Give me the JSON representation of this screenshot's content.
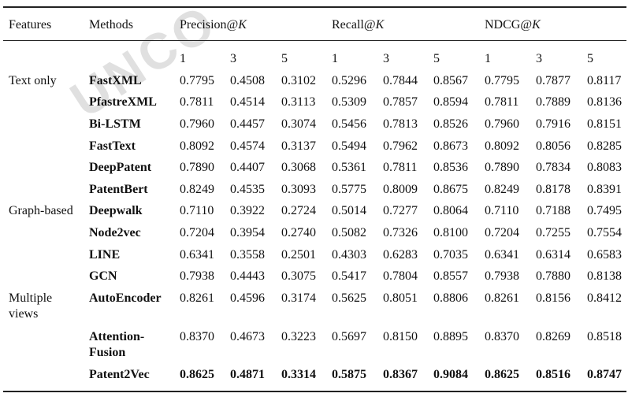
{
  "watermark": "UNCO",
  "table": {
    "headers": {
      "features": "Features",
      "methods": "Methods",
      "groups": [
        {
          "label": "Precision@",
          "var": "K"
        },
        {
          "label": "Recall@",
          "var": "K"
        },
        {
          "label": "NDCG@",
          "var": "K"
        }
      ]
    },
    "k_values": [
      "1",
      "3",
      "5",
      "1",
      "3",
      "5",
      "1",
      "3",
      "5"
    ],
    "rows": [
      {
        "group": "Text only",
        "method": "FastXML",
        "values": [
          "0.7795",
          "0.4508",
          "0.3102",
          "0.5296",
          "0.7844",
          "0.8567",
          "0.7795",
          "0.7877",
          "0.8117"
        ]
      },
      {
        "group": null,
        "method": "PfastreXML",
        "values": [
          "0.7811",
          "0.4514",
          "0.3113",
          "0.5309",
          "0.7857",
          "0.8594",
          "0.7811",
          "0.7889",
          "0.8136"
        ]
      },
      {
        "group": null,
        "method": "Bi-LSTM",
        "values": [
          "0.7960",
          "0.4457",
          "0.3074",
          "0.5456",
          "0.7813",
          "0.8526",
          "0.7960",
          "0.7916",
          "0.8151"
        ]
      },
      {
        "group": null,
        "method": "FastText",
        "values": [
          "0.8092",
          "0.4574",
          "0.3137",
          "0.5494",
          "0.7962",
          "0.8673",
          "0.8092",
          "0.8056",
          "0.8285"
        ]
      },
      {
        "group": null,
        "method": "DeepPatent",
        "values": [
          "0.7890",
          "0.4407",
          "0.3068",
          "0.5361",
          "0.7811",
          "0.8536",
          "0.7890",
          "0.7834",
          "0.8083"
        ]
      },
      {
        "group": null,
        "method": "PatentBert",
        "values": [
          "0.8249",
          "0.4535",
          "0.3093",
          "0.5775",
          "0.8009",
          "0.8675",
          "0.8249",
          "0.8178",
          "0.8391"
        ]
      },
      {
        "group": "Graph-based",
        "method": "Deepwalk",
        "values": [
          "0.7110",
          "0.3922",
          "0.2724",
          "0.5014",
          "0.7277",
          "0.8064",
          "0.7110",
          "0.7188",
          "0.7495"
        ]
      },
      {
        "group": null,
        "method": "Node2vec",
        "values": [
          "0.7204",
          "0.3954",
          "0.2740",
          "0.5082",
          "0.7326",
          "0.8100",
          "0.7204",
          "0.7255",
          "0.7554"
        ]
      },
      {
        "group": null,
        "method": "LINE",
        "values": [
          "0.6341",
          "0.3558",
          "0.2501",
          "0.4303",
          "0.6283",
          "0.7035",
          "0.6341",
          "0.6314",
          "0.6583"
        ]
      },
      {
        "group": null,
        "method": "GCN",
        "values": [
          "0.7938",
          "0.4443",
          "0.3075",
          "0.5417",
          "0.7804",
          "0.8557",
          "0.7938",
          "0.7880",
          "0.8138"
        ]
      },
      {
        "group": "Multiple views",
        "method": "AutoEncoder",
        "values": [
          "0.8261",
          "0.4596",
          "0.3174",
          "0.5625",
          "0.8051",
          "0.8806",
          "0.8261",
          "0.8156",
          "0.8412"
        ]
      },
      {
        "group": null,
        "method": "Attention-Fusion",
        "values": [
          "0.8370",
          "0.4673",
          "0.3223",
          "0.5697",
          "0.8150",
          "0.8895",
          "0.8370",
          "0.8269",
          "0.8518"
        ]
      },
      {
        "group": null,
        "method": "Patent2Vec",
        "bold": true,
        "values": [
          "0.8625",
          "0.4871",
          "0.3314",
          "0.5875",
          "0.8367",
          "0.9084",
          "0.8625",
          "0.8516",
          "0.8747"
        ]
      }
    ]
  }
}
